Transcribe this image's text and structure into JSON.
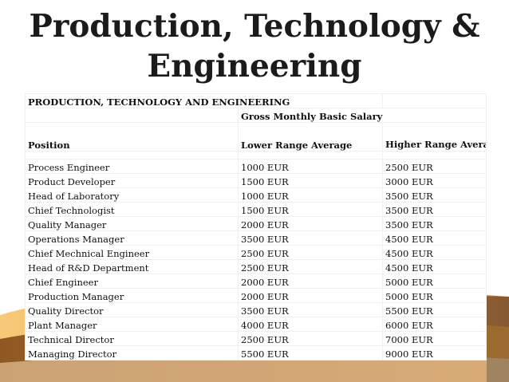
{
  "slide": {
    "title_line1": "Production, Technology &",
    "title_line2": "Engineering"
  },
  "table": {
    "section_title": "PRODUCTION, TECHNOLOGY AND ENGINEERING",
    "group_header": "Gross Monthly Basic Salary",
    "columns": [
      "Position",
      "Lower Range Average",
      "Higher Range Average"
    ],
    "rows": [
      [
        "Process Engineer",
        "1000 EUR",
        "2500 EUR"
      ],
      [
        "Product Developer",
        "1500 EUR",
        "3000 EUR"
      ],
      [
        "Head of Laboratory",
        "1000 EUR",
        "3500 EUR"
      ],
      [
        "Chief Technologist",
        "1500 EUR",
        "3500 EUR"
      ],
      [
        "Quality Manager",
        "2000 EUR",
        "3500 EUR"
      ],
      [
        "Operations Manager",
        "3500 EUR",
        "4500 EUR"
      ],
      [
        "Chief Mechnical Engineer",
        "2500 EUR",
        "4500 EUR"
      ],
      [
        "Head of R&D Department",
        "2500 EUR",
        "4500 EUR"
      ],
      [
        "Chief Engineer",
        "2000 EUR",
        "5000 EUR"
      ],
      [
        "Production Manager",
        "2000 EUR",
        "5000 EUR"
      ],
      [
        "Quality Director",
        "3500 EUR",
        "5500 EUR"
      ],
      [
        "Plant Manager",
        "4000 EUR",
        "6000 EUR"
      ],
      [
        "Technical Director",
        "2500 EUR",
        "7000 EUR"
      ],
      [
        "Managing Director",
        "5500 EUR",
        "9000 EUR"
      ]
    ]
  },
  "colors": {
    "swoosh_orange": "#e08a1e",
    "swoosh_gold": "#f2c14e",
    "swoosh_brown": "#6b3a12"
  }
}
